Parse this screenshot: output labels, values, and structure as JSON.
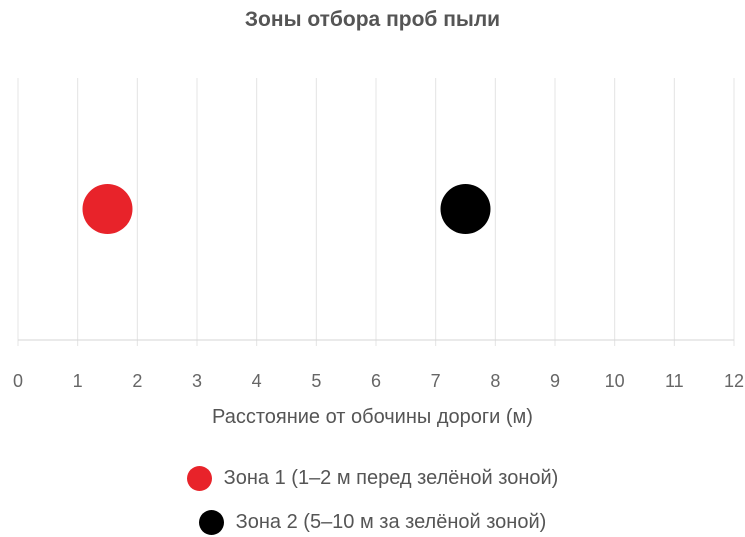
{
  "chart_data": {
    "type": "scatter",
    "title": "Зоны отбора проб пыли",
    "xlabel": "Расстояние от обочины дороги (м)",
    "ylabel": "",
    "xlim": [
      0,
      12
    ],
    "x_ticks": [
      "0",
      "1",
      "2",
      "3",
      "4",
      "5",
      "6",
      "7",
      "8",
      "9",
      "10",
      "11",
      "12"
    ],
    "grid": "vertical",
    "legend_position": "bottom",
    "series": [
      {
        "name": "Зона 1 (1–2 м перед зелёной зоной)",
        "color": "#e8232a",
        "points": [
          {
            "x": 1.5,
            "y": 0
          }
        ]
      },
      {
        "name": "Зона 2 (5–10 м за зелёной зоной)",
        "color": "#000000",
        "points": [
          {
            "x": 7.5,
            "y": 0
          }
        ]
      }
    ]
  }
}
